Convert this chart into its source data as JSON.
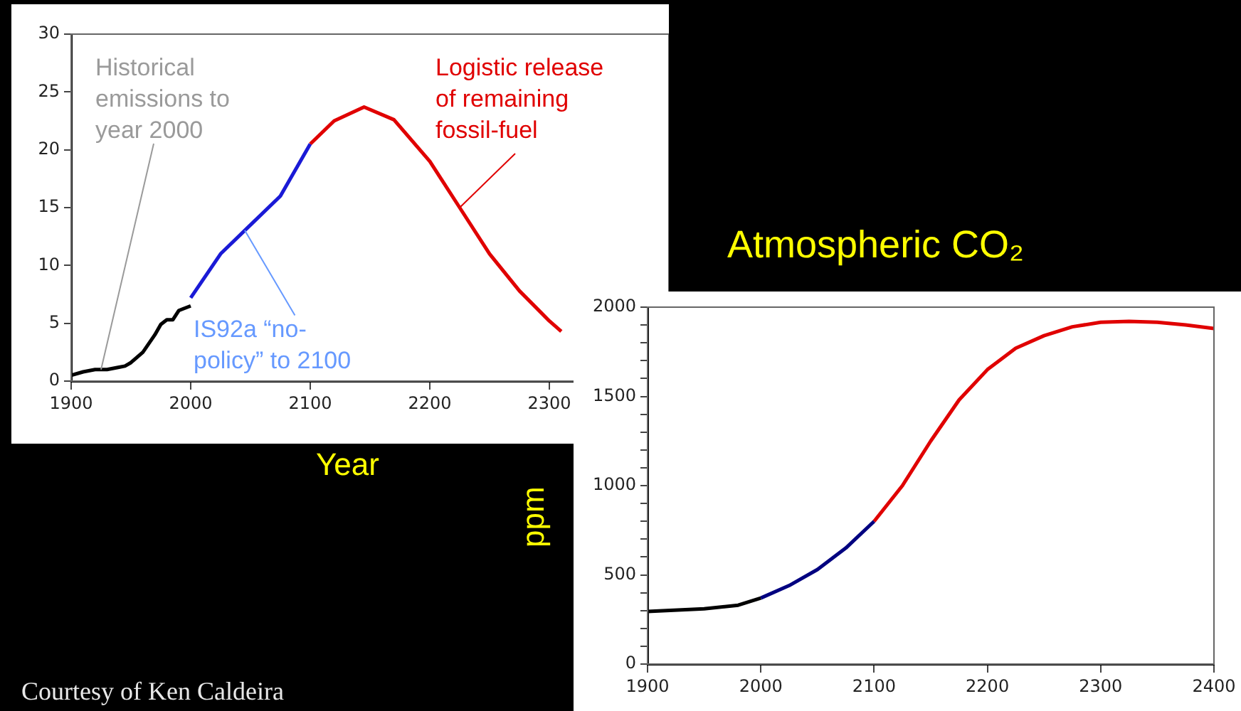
{
  "chart_data": [
    {
      "type": "line",
      "xlabel": "Year",
      "xlim": [
        1900,
        2400
      ],
      "xticks": [
        1900,
        2000,
        2100,
        2200,
        2300
      ],
      "ylim": [
        0,
        30
      ],
      "yticks": [
        0,
        5,
        10,
        15,
        20,
        25,
        30
      ],
      "grid": false,
      "legend": false,
      "marker": "none",
      "line_style": "solid",
      "annotations": [
        {
          "text": "Historical emissions to year 2000",
          "x": 1925,
          "y": 1
        },
        {
          "text": "IS92a “no-policy” to 2100",
          "x": 2045,
          "y": 13
        },
        {
          "text": "Logistic release of remaining fossil-fuel",
          "x": 2225,
          "y": 15
        },
        "Courtesy of Ken Caldeira"
      ],
      "series": [
        {
          "color": "#000000",
          "x": [
            1900,
            1910,
            1920,
            1930,
            1940,
            1945,
            1950,
            1960,
            1970,
            1975,
            1980,
            1985,
            1990,
            2000
          ],
          "values": [
            0.5,
            0.8,
            1.0,
            1.0,
            1.2,
            1.3,
            1.6,
            2.5,
            4.0,
            4.9,
            5.3,
            5.3,
            6.1,
            6.5
          ]
        },
        {
          "color": "#1a1ad6",
          "x": [
            2000,
            2025,
            2050,
            2075,
            2100
          ],
          "values": [
            7.2,
            11.0,
            13.5,
            16.0,
            20.5
          ]
        },
        {
          "color": "#e00000",
          "x": [
            2100,
            2120,
            2145,
            2170,
            2200,
            2225,
            2250,
            2275,
            2300,
            2310
          ],
          "values": [
            20.5,
            22.5,
            23.7,
            22.6,
            19.0,
            15.0,
            11.0,
            7.8,
            5.2,
            4.3
          ]
        }
      ]
    },
    {
      "type": "line",
      "title": "Atmospheric CO₂",
      "ylabel": "ppm",
      "xlim": [
        1900,
        2400
      ],
      "xticks": [
        1900,
        2000,
        2100,
        2200,
        2300,
        2400
      ],
      "ylim": [
        0,
        2000
      ],
      "yticks": [
        0,
        {
          "value": 100,
          "label": null
        },
        {
          "value": 200,
          "label": null
        },
        {
          "value": 300,
          "label": null
        },
        {
          "value": 400,
          "label": null
        },
        500,
        {
          "value": 600,
          "label": null
        },
        {
          "value": 700,
          "label": null
        },
        {
          "value": 800,
          "label": null
        },
        {
          "value": 900,
          "label": null
        },
        1000,
        {
          "value": 1100,
          "label": null
        },
        {
          "value": 1200,
          "label": null
        },
        {
          "value": 1300,
          "label": null
        },
        {
          "value": 1400,
          "label": null
        },
        1500,
        {
          "value": 1600,
          "label": null
        },
        {
          "value": 1700,
          "label": null
        },
        {
          "value": 1800,
          "label": null
        },
        {
          "value": 1900,
          "label": null
        },
        2000
      ],
      "grid": false,
      "legend": false,
      "marker": "none",
      "line_style": "solid",
      "series": [
        {
          "color": "#000000",
          "x": [
            1900,
            1950,
            1980,
            2000
          ],
          "values": [
            295,
            310,
            330,
            370
          ]
        },
        {
          "color": "#000080",
          "x": [
            2000,
            2025,
            2050,
            2075,
            2100
          ],
          "values": [
            370,
            440,
            530,
            650,
            800
          ]
        },
        {
          "color": "#e00000",
          "x": [
            2100,
            2125,
            2150,
            2175,
            2200,
            2225,
            2250,
            2275,
            2300,
            2325,
            2350,
            2375,
            2400
          ],
          "values": [
            800,
            1000,
            1250,
            1480,
            1650,
            1770,
            1840,
            1890,
            1915,
            1920,
            1915,
            1900,
            1880
          ]
        }
      ]
    }
  ]
}
